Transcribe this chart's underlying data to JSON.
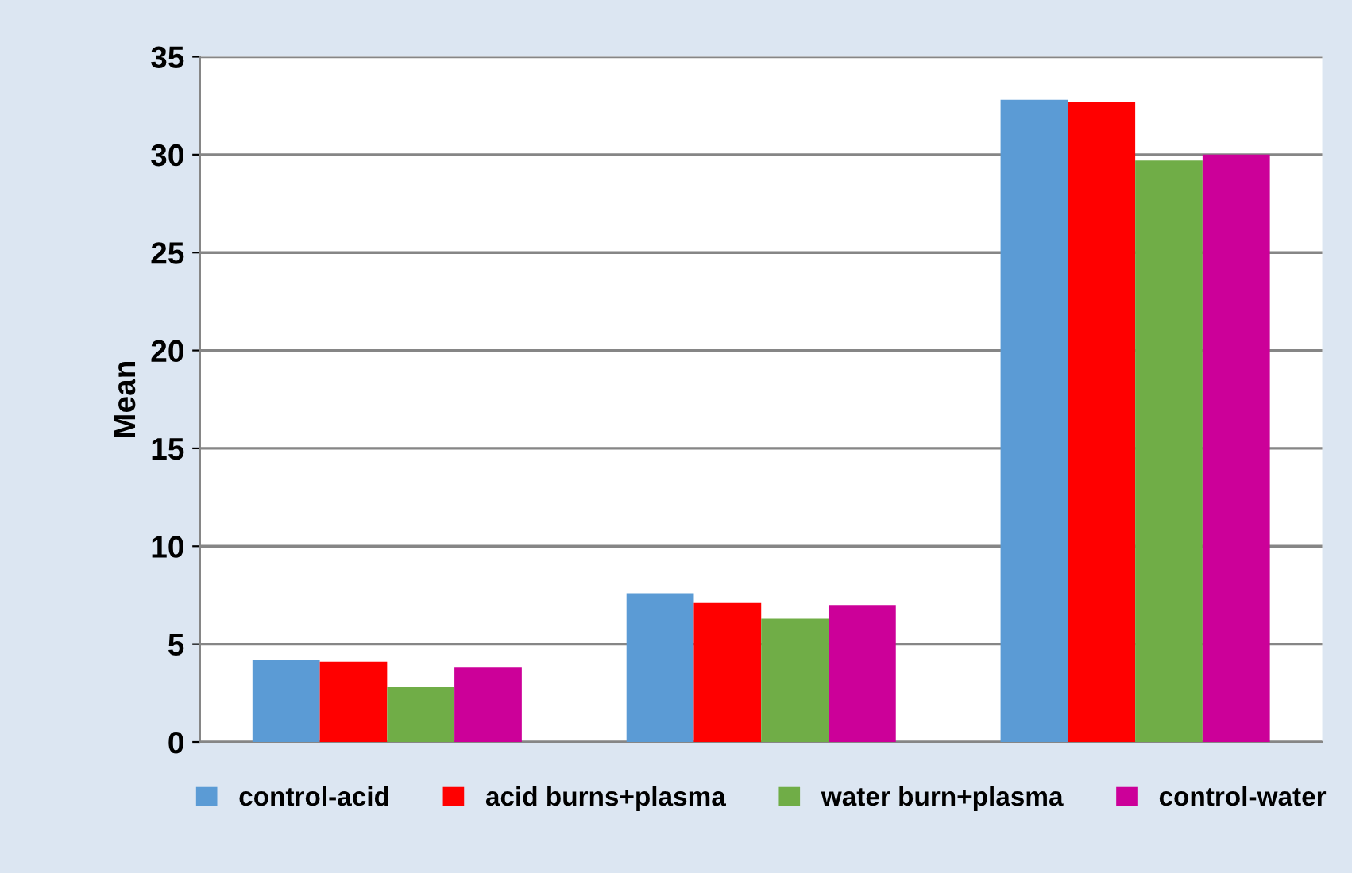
{
  "chart_data": {
    "type": "bar",
    "ylabel": "Mean",
    "categories": [
      null,
      null,
      null
    ],
    "series": [
      {
        "name": "control-acid",
        "color": "#5b9bd5",
        "values": [
          4.2,
          7.6,
          32.8
        ]
      },
      {
        "name": "acid burns+plasma",
        "color": "#ff0000",
        "values": [
          4.1,
          7.1,
          32.7
        ]
      },
      {
        "name": "water burn+plasma",
        "color": "#70ad47",
        "values": [
          2.8,
          6.3,
          29.7
        ]
      },
      {
        "name": "control-water",
        "color": "#cc0099",
        "values": [
          3.8,
          7.0,
          30.0
        ]
      }
    ],
    "ylim": [
      0,
      35
    ],
    "yticks": [
      0,
      5,
      10,
      15,
      20,
      25,
      30,
      35
    ],
    "grid": "y",
    "legend": "bottom"
  }
}
